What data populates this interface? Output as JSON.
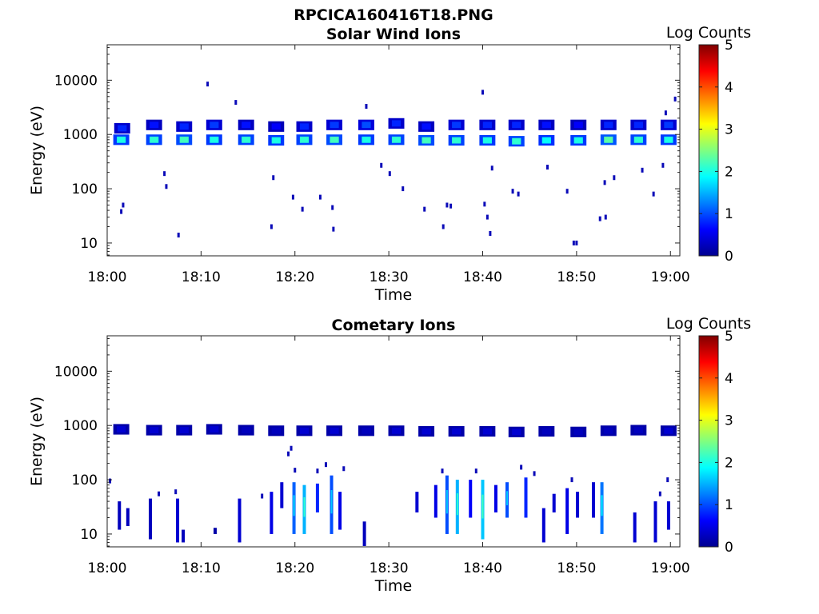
{
  "figure": {
    "title": "RPCICA160416T18.PNG"
  },
  "colorbar": {
    "label": "Log Counts",
    "ticks": [
      "0",
      "1",
      "2",
      "3",
      "4",
      "5"
    ],
    "range": [
      0,
      5
    ],
    "colormap": "jet"
  },
  "chart_data": [
    {
      "type": "heatmap",
      "title": "Solar Wind Ions",
      "xlabel": "Time",
      "ylabel": "Energy (eV)",
      "x_tick_labels": [
        "18:00",
        "18:10",
        "18:20",
        "18:30",
        "18:40",
        "18:50",
        "19:00"
      ],
      "y_tick_labels": [
        "10",
        "100",
        "1000",
        "10000"
      ],
      "y_scale": "log",
      "xlim_minutes": [
        0,
        61
      ],
      "ylim": [
        5.8,
        45000
      ],
      "cells": [
        {
          "t": 1.5,
          "e": 800,
          "v": 2.0
        },
        {
          "t": 1.6,
          "e": 1300,
          "v": 0.8
        },
        {
          "t": 5.0,
          "e": 800,
          "v": 2.1
        },
        {
          "t": 5.0,
          "e": 1500,
          "v": 0.7
        },
        {
          "t": 8.2,
          "e": 800,
          "v": 2.2
        },
        {
          "t": 8.2,
          "e": 1400,
          "v": 0.8
        },
        {
          "t": 11.4,
          "e": 800,
          "v": 2.0
        },
        {
          "t": 11.4,
          "e": 1500,
          "v": 0.9
        },
        {
          "t": 14.8,
          "e": 800,
          "v": 2.1
        },
        {
          "t": 14.8,
          "e": 1500,
          "v": 0.7
        },
        {
          "t": 18.0,
          "e": 780,
          "v": 2.0
        },
        {
          "t": 18.0,
          "e": 1400,
          "v": 0.6
        },
        {
          "t": 21.0,
          "e": 800,
          "v": 2.1
        },
        {
          "t": 21.0,
          "e": 1400,
          "v": 0.8
        },
        {
          "t": 24.2,
          "e": 800,
          "v": 2.2
        },
        {
          "t": 24.2,
          "e": 1500,
          "v": 0.9
        },
        {
          "t": 27.6,
          "e": 800,
          "v": 2.0
        },
        {
          "t": 27.6,
          "e": 1500,
          "v": 1.0
        },
        {
          "t": 30.8,
          "e": 800,
          "v": 2.1
        },
        {
          "t": 30.8,
          "e": 1600,
          "v": 0.8
        },
        {
          "t": 34.0,
          "e": 780,
          "v": 2.2
        },
        {
          "t": 34.0,
          "e": 1400,
          "v": 0.7
        },
        {
          "t": 37.2,
          "e": 780,
          "v": 2.1
        },
        {
          "t": 37.2,
          "e": 1500,
          "v": 0.9
        },
        {
          "t": 40.5,
          "e": 780,
          "v": 2.0
        },
        {
          "t": 40.5,
          "e": 1500,
          "v": 0.8
        },
        {
          "t": 43.6,
          "e": 750,
          "v": 2.1
        },
        {
          "t": 43.6,
          "e": 1500,
          "v": 0.8
        },
        {
          "t": 46.8,
          "e": 780,
          "v": 1.9
        },
        {
          "t": 46.8,
          "e": 1500,
          "v": 0.7
        },
        {
          "t": 50.2,
          "e": 780,
          "v": 2.0
        },
        {
          "t": 50.2,
          "e": 1500,
          "v": 0.6
        },
        {
          "t": 53.4,
          "e": 800,
          "v": 2.3
        },
        {
          "t": 53.4,
          "e": 1500,
          "v": 0.8
        },
        {
          "t": 56.6,
          "e": 800,
          "v": 2.1
        },
        {
          "t": 56.6,
          "e": 1500,
          "v": 0.8
        },
        {
          "t": 59.8,
          "e": 800,
          "v": 2.0
        },
        {
          "t": 59.8,
          "e": 1500,
          "v": 0.9
        }
      ],
      "scatter": [
        {
          "t": 10.7,
          "e": 8500
        },
        {
          "t": 13.7,
          "e": 3900
        },
        {
          "t": 27.6,
          "e": 3300
        },
        {
          "t": 40.0,
          "e": 6000
        },
        {
          "t": 60.5,
          "e": 4500
        },
        {
          "t": 59.5,
          "e": 2500
        },
        {
          "t": 1.7,
          "e": 50
        },
        {
          "t": 1.5,
          "e": 38
        },
        {
          "t": 7.6,
          "e": 14
        },
        {
          "t": 17.5,
          "e": 20
        },
        {
          "t": 20.8,
          "e": 42
        },
        {
          "t": 24.0,
          "e": 45
        },
        {
          "t": 24.1,
          "e": 18
        },
        {
          "t": 33.8,
          "e": 42
        },
        {
          "t": 36.2,
          "e": 50
        },
        {
          "t": 36.6,
          "e": 48
        },
        {
          "t": 35.8,
          "e": 20
        },
        {
          "t": 40.2,
          "e": 52
        },
        {
          "t": 40.5,
          "e": 30
        },
        {
          "t": 40.8,
          "e": 15
        },
        {
          "t": 43.2,
          "e": 90
        },
        {
          "t": 43.8,
          "e": 80
        },
        {
          "t": 49.7,
          "e": 10
        },
        {
          "t": 50.0,
          "e": 10
        },
        {
          "t": 52.5,
          "e": 28
        },
        {
          "t": 53.1,
          "e": 30
        },
        {
          "t": 6.1,
          "e": 190
        },
        {
          "t": 6.3,
          "e": 110
        },
        {
          "t": 17.7,
          "e": 160
        },
        {
          "t": 29.2,
          "e": 270
        },
        {
          "t": 30.1,
          "e": 190
        },
        {
          "t": 41.0,
          "e": 240
        },
        {
          "t": 46.9,
          "e": 250
        },
        {
          "t": 49.0,
          "e": 90
        },
        {
          "t": 53.0,
          "e": 130
        },
        {
          "t": 54.0,
          "e": 160
        },
        {
          "t": 58.2,
          "e": 80
        },
        {
          "t": 59.2,
          "e": 270
        },
        {
          "t": 57.0,
          "e": 220
        },
        {
          "t": 19.8,
          "e": 70
        },
        {
          "t": 22.7,
          "e": 70
        },
        {
          "t": 31.5,
          "e": 100
        }
      ]
    },
    {
      "type": "heatmap",
      "title": "Cometary Ions",
      "xlabel": "Time",
      "ylabel": "Energy (eV)",
      "x_tick_labels": [
        "18:00",
        "18:10",
        "18:20",
        "18:30",
        "18:40",
        "18:50",
        "19:00"
      ],
      "y_tick_labels": [
        "10",
        "100",
        "1000",
        "10000"
      ],
      "y_scale": "log",
      "xlim_minutes": [
        0,
        61
      ],
      "ylim": [
        5.8,
        45000
      ],
      "cells": [
        {
          "t": 1.5,
          "e": 850,
          "v": 0.4
        },
        {
          "t": 5.0,
          "e": 820,
          "v": 0.4
        },
        {
          "t": 8.2,
          "e": 820,
          "v": 0.4
        },
        {
          "t": 11.4,
          "e": 850,
          "v": 0.4
        },
        {
          "t": 14.8,
          "e": 820,
          "v": 0.3
        },
        {
          "t": 18.0,
          "e": 800,
          "v": 0.3
        },
        {
          "t": 21.0,
          "e": 800,
          "v": 0.4
        },
        {
          "t": 24.2,
          "e": 800,
          "v": 0.4
        },
        {
          "t": 27.6,
          "e": 800,
          "v": 0.3
        },
        {
          "t": 30.8,
          "e": 800,
          "v": 0.4
        },
        {
          "t": 34.0,
          "e": 780,
          "v": 0.4
        },
        {
          "t": 37.2,
          "e": 780,
          "v": 0.4
        },
        {
          "t": 40.5,
          "e": 780,
          "v": 0.4
        },
        {
          "t": 43.6,
          "e": 760,
          "v": 0.4
        },
        {
          "t": 46.8,
          "e": 780,
          "v": 0.3
        },
        {
          "t": 50.2,
          "e": 760,
          "v": 0.3
        },
        {
          "t": 53.4,
          "e": 800,
          "v": 0.3
        },
        {
          "t": 56.6,
          "e": 820,
          "v": 0.3
        },
        {
          "t": 59.8,
          "e": 800,
          "v": 0.4
        }
      ],
      "columns": [
        {
          "t": 1.3,
          "e0": 12,
          "e1": 40,
          "v": 0.3
        },
        {
          "t": 2.2,
          "e0": 14,
          "e1": 30,
          "v": 0.3
        },
        {
          "t": 4.6,
          "e0": 8,
          "e1": 45,
          "v": 0.3
        },
        {
          "t": 7.5,
          "e0": 7,
          "e1": 45,
          "v": 0.4
        },
        {
          "t": 8.1,
          "e0": 7,
          "e1": 12,
          "v": 0.3
        },
        {
          "t": 11.5,
          "e0": 10,
          "e1": 13,
          "v": 0.2
        },
        {
          "t": 14.1,
          "e0": 7,
          "e1": 45,
          "v": 0.4
        },
        {
          "t": 17.5,
          "e0": 10,
          "e1": 60,
          "v": 0.5
        },
        {
          "t": 18.6,
          "e0": 30,
          "e1": 90,
          "v": 0.4
        },
        {
          "t": 19.9,
          "e0": 10,
          "e1": 90,
          "v": 1.1
        },
        {
          "t": 21.0,
          "e0": 10,
          "e1": 80,
          "v": 1.5
        },
        {
          "t": 22.4,
          "e0": 25,
          "e1": 85,
          "v": 0.8
        },
        {
          "t": 23.9,
          "e0": 10,
          "e1": 120,
          "v": 1.0
        },
        {
          "t": 24.8,
          "e0": 12,
          "e1": 60,
          "v": 0.5
        },
        {
          "t": 27.4,
          "e0": 6,
          "e1": 17,
          "v": 0.3
        },
        {
          "t": 33.0,
          "e0": 25,
          "e1": 60,
          "v": 0.4
        },
        {
          "t": 35.0,
          "e0": 20,
          "e1": 80,
          "v": 0.5
        },
        {
          "t": 36.2,
          "e0": 10,
          "e1": 120,
          "v": 1.0
        },
        {
          "t": 37.3,
          "e0": 10,
          "e1": 100,
          "v": 1.5
        },
        {
          "t": 38.7,
          "e0": 20,
          "e1": 100,
          "v": 0.6
        },
        {
          "t": 40.0,
          "e0": 8,
          "e1": 100,
          "v": 1.6
        },
        {
          "t": 41.4,
          "e0": 25,
          "e1": 80,
          "v": 0.5
        },
        {
          "t": 42.6,
          "e0": 20,
          "e1": 90,
          "v": 1.0
        },
        {
          "t": 44.6,
          "e0": 20,
          "e1": 110,
          "v": 0.8
        },
        {
          "t": 46.5,
          "e0": 7,
          "e1": 30,
          "v": 0.4
        },
        {
          "t": 47.6,
          "e0": 25,
          "e1": 55,
          "v": 0.4
        },
        {
          "t": 49.0,
          "e0": 10,
          "e1": 70,
          "v": 0.5
        },
        {
          "t": 50.1,
          "e0": 20,
          "e1": 60,
          "v": 0.4
        },
        {
          "t": 51.8,
          "e0": 20,
          "e1": 90,
          "v": 0.4
        },
        {
          "t": 52.7,
          "e0": 10,
          "e1": 90,
          "v": 1.2
        },
        {
          "t": 56.2,
          "e0": 7,
          "e1": 25,
          "v": 0.4
        },
        {
          "t": 58.4,
          "e0": 7,
          "e1": 40,
          "v": 0.4
        },
        {
          "t": 59.8,
          "e0": 12,
          "e1": 40,
          "v": 0.4
        }
      ],
      "scatter": [
        {
          "t": 0.3,
          "e": 95
        },
        {
          "t": 5.5,
          "e": 55
        },
        {
          "t": 7.3,
          "e": 60
        },
        {
          "t": 19.6,
          "e": 380
        },
        {
          "t": 19.3,
          "e": 300
        },
        {
          "t": 20.0,
          "e": 150
        },
        {
          "t": 23.3,
          "e": 190
        },
        {
          "t": 25.2,
          "e": 160
        },
        {
          "t": 22.4,
          "e": 145
        },
        {
          "t": 35.7,
          "e": 145
        },
        {
          "t": 39.3,
          "e": 145
        },
        {
          "t": 44.1,
          "e": 170
        },
        {
          "t": 45.5,
          "e": 130
        },
        {
          "t": 49.5,
          "e": 100
        },
        {
          "t": 58.9,
          "e": 55
        },
        {
          "t": 59.7,
          "e": 100
        },
        {
          "t": 16.5,
          "e": 50
        }
      ]
    }
  ]
}
